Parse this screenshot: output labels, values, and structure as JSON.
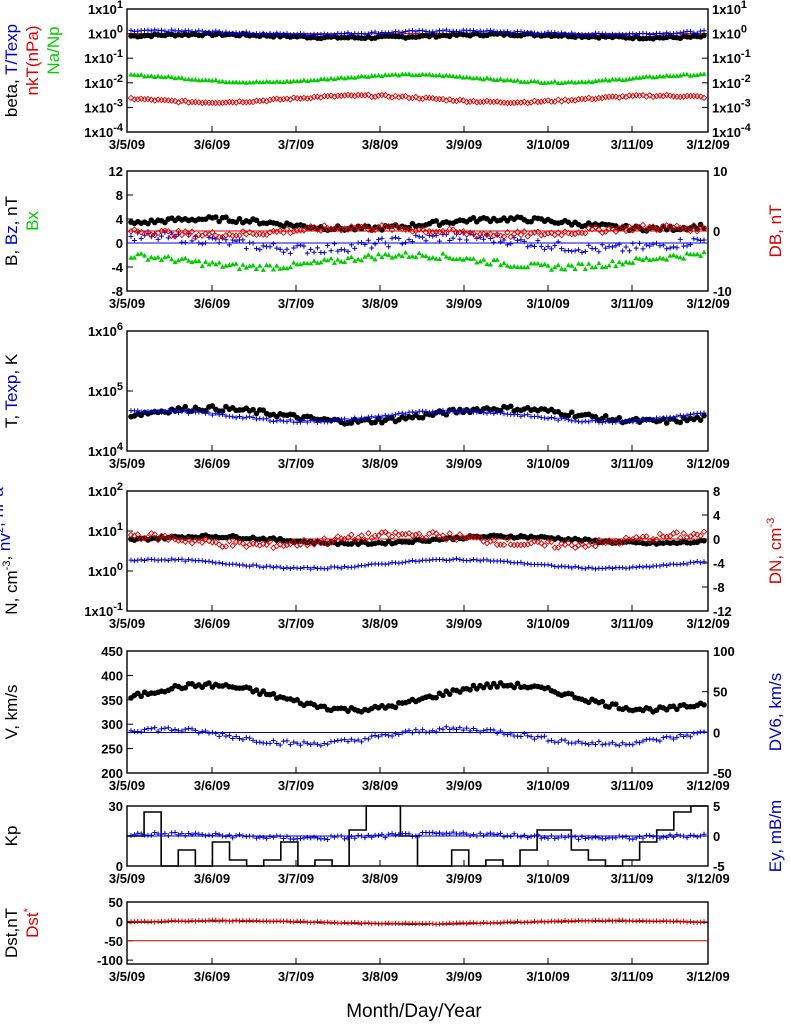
{
  "chart_data": [
    {
      "type": "scatter",
      "id": "beta",
      "ylabel_parts": [
        {
          "text": "beta, ",
          "color": "#000000"
        },
        {
          "text": "T/Texp",
          "color": "#0000cc"
        }
      ],
      "ylabel2_parts": [
        {
          "text": "nkT(nPa)",
          "color": "#dd0000"
        }
      ],
      "ylabel3_parts": [
        {
          "text": "Na/Np",
          "color": "#00cc00"
        }
      ],
      "yscale": "log",
      "ylim": [
        0.0001,
        10
      ],
      "ytick_labels": [
        "1x10-4",
        "1x10-3",
        "1x10-2",
        "1x10-1",
        "1x100",
        "1x101"
      ],
      "ytick_base": "1x10",
      "ytick_exps": [
        "-4",
        "-3",
        "-2",
        "-1",
        "0",
        "1"
      ],
      "right_ytick_exps": [
        "-4",
        "-3",
        "-2",
        "-1",
        "0",
        "1"
      ],
      "reference_line": {
        "y": 1,
        "color": "#cc0000"
      },
      "series": [
        {
          "label": "beta",
          "marker": "dot",
          "color": "#000000",
          "base": 0.8,
          "amp": 0.15,
          "noise": 0.12
        },
        {
          "label": "T/Texp",
          "marker": "plus",
          "color": "#0000cc",
          "base": 1.1,
          "amp": 0.15,
          "noise": 0.1
        },
        {
          "label": "Na/Np",
          "marker": "triangle",
          "color": "#00cc00",
          "base": 0.015,
          "amp": 0.35,
          "noise": 0.08
        },
        {
          "label": "nkT",
          "marker": "diamond",
          "color": "#dd0000",
          "base": 0.0022,
          "amp": 0.3,
          "noise": 0.1
        }
      ]
    },
    {
      "type": "scatter",
      "id": "B",
      "ylabel_parts": [
        {
          "text": "B, ",
          "color": "#000000"
        },
        {
          "text": "Bz",
          "color": "#0000cc"
        },
        {
          "text": ", nT",
          "color": "#000000"
        }
      ],
      "ylabel2_parts": [
        {
          "text": "Bx",
          "color": "#00cc00"
        }
      ],
      "right_ylabel_parts": [
        {
          "text": "DB, nT",
          "color": "#dd0000"
        }
      ],
      "ylim": [
        -8,
        12
      ],
      "yticks": [
        "-8",
        "-4",
        "0",
        "4",
        "8",
        "12"
      ],
      "right_ylim": [
        -10,
        10
      ],
      "right_yticks": [
        "-10",
        "0",
        "10"
      ],
      "reference_line": {
        "y": 2,
        "color": "#cc0000"
      },
      "zero_line": {
        "y": 0,
        "color": "#0000cc"
      },
      "series": [
        {
          "label": "B",
          "marker": "dot",
          "color": "#000000",
          "base": 3.2,
          "amp": 0.8,
          "noise": 0.4
        },
        {
          "label": "Bz",
          "marker": "plus",
          "color": "#0000cc",
          "base": 0.0,
          "amp": 1.0,
          "noise": 0.8
        },
        {
          "label": "Bx",
          "marker": "triangle",
          "color": "#00cc00",
          "base": -3.0,
          "amp": 1.0,
          "noise": 0.5
        },
        {
          "label": "DB",
          "marker": "diamond",
          "color": "#dd0000",
          "base": 2.0,
          "amp": 0.6,
          "noise": 0.5
        }
      ]
    },
    {
      "type": "scatter",
      "id": "T",
      "ylabel_parts": [
        {
          "text": "T, ",
          "color": "#000000"
        },
        {
          "text": "Texp",
          "color": "#0000cc"
        },
        {
          "text": ", K",
          "color": "#000000"
        }
      ],
      "yscale": "log",
      "ylim": [
        10000,
        1000000
      ],
      "ytick_base": "1x10",
      "ytick_exps": [
        "4",
        "5",
        "6"
      ],
      "series": [
        {
          "label": "T",
          "marker": "dot",
          "color": "#000000",
          "base": 40000,
          "amp": 0.25,
          "noise": 0.1
        },
        {
          "label": "Texp",
          "marker": "plus",
          "color": "#0000cc",
          "base": 38000,
          "amp": 0.2,
          "noise": 0.05
        }
      ]
    },
    {
      "type": "scatter",
      "id": "N",
      "ylabel_parts": [
        {
          "text": "N, cm",
          "color": "#000000"
        },
        {
          "text": "-3",
          "color": "#000000",
          "sup": true
        },
        {
          "text": ", ",
          "color": "#000000"
        },
        {
          "text": "nv",
          "color": "#0000cc"
        },
        {
          "text": "2",
          "color": "#0000cc",
          "sup": true
        },
        {
          "text": ", nPa",
          "color": "#0000cc"
        }
      ],
      "right_ylabel_parts": [
        {
          "text": "DN, cm",
          "color": "#dd0000"
        },
        {
          "text": "-3",
          "color": "#dd0000",
          "sup": true
        }
      ],
      "yscale": "log",
      "ylim": [
        0.1,
        100
      ],
      "ytick_base": "1x10",
      "ytick_exps": [
        "-1",
        "0",
        "1",
        "2"
      ],
      "right_ylim": [
        -12,
        8
      ],
      "right_yticks": [
        "-12",
        "-8",
        "-4",
        "0",
        "4",
        "8"
      ],
      "reference_line": {
        "y": 6.3,
        "color": "#cc0000"
      },
      "series": [
        {
          "label": "N",
          "marker": "dot",
          "color": "#000000",
          "base": 6.0,
          "amp": 0.2,
          "noise": 0.08
        },
        {
          "label": "nv2",
          "marker": "plus",
          "color": "#0000cc",
          "base": 1.5,
          "amp": 0.25,
          "noise": 0.05
        },
        {
          "label": "DN",
          "marker": "diamond",
          "color": "#dd0000",
          "base": 6.0,
          "amp": 0.3,
          "noise": 0.2
        }
      ]
    },
    {
      "type": "scatter",
      "id": "V",
      "ylabel_parts": [
        {
          "text": "V, km/s",
          "color": "#000000"
        }
      ],
      "right_ylabel_parts": [
        {
          "text": "DV6, km/s",
          "color": "#0000cc"
        }
      ],
      "ylim": [
        200,
        450
      ],
      "yticks": [
        "200",
        "250",
        "300",
        "350",
        "400",
        "450"
      ],
      "right_ylim": [
        -50,
        100
      ],
      "right_yticks": [
        "-50",
        "0",
        "50",
        "100"
      ],
      "zero_line": {
        "y": 283,
        "color": "#0000cc"
      },
      "series": [
        {
          "label": "V",
          "marker": "dot",
          "color": "#000000",
          "base": 355,
          "amp": 25,
          "noise": 5
        },
        {
          "label": "DV6",
          "marker": "plus",
          "color": "#0000cc",
          "base": 275,
          "amp": 15,
          "noise": 5
        }
      ]
    },
    {
      "type": "line",
      "id": "Kp",
      "ylabel_parts": [
        {
          "text": "Kp",
          "color": "#000000"
        }
      ],
      "right_ylabel_parts": [
        {
          "text": "Ey, mB/m",
          "color": "#0000cc"
        }
      ],
      "ylim": [
        0,
        30
      ],
      "yticks": [
        "0",
        "30"
      ],
      "right_ylim": [
        -5,
        5
      ],
      "right_yticks": [
        "-5",
        "0",
        "5"
      ],
      "reference_line": {
        "y": 15,
        "color": "#0000cc"
      },
      "series": [
        {
          "label": "Kp",
          "marker": "step",
          "color": "#000000"
        },
        {
          "label": "Ey",
          "marker": "plus",
          "color": "#0000cc",
          "base": 15,
          "amp": 1,
          "noise": 1
        }
      ]
    },
    {
      "type": "line",
      "id": "Dst",
      "ylabel_parts": [
        {
          "text": "Dst,nT",
          "color": "#000000"
        }
      ],
      "ylabel2_parts": [
        {
          "text": "Dst",
          "color": "#dd0000"
        },
        {
          "text": "*",
          "color": "#dd0000",
          "sup": true
        }
      ],
      "ylim": [
        -110,
        50
      ],
      "yticks": [
        "-100",
        "-50",
        "0",
        "50"
      ],
      "reference_line": {
        "y": -50,
        "color": "#cc0000"
      },
      "series": [
        {
          "label": "Dst",
          "marker": "line",
          "color": "#000000"
        },
        {
          "label": "Dst*",
          "marker": "plus",
          "color": "#dd0000"
        }
      ]
    }
  ],
  "xaxis": {
    "label": "Month/Day/Year",
    "tick_labels": [
      "3/5/09",
      "3/6/09",
      "3/7/09",
      "3/8/09",
      "3/9/09",
      "3/10/09",
      "3/11/09",
      "3/12/09"
    ]
  },
  "colors": {
    "black": "#000000",
    "blue": "#0000cc",
    "red": "#dd0000",
    "green": "#00cc00"
  }
}
